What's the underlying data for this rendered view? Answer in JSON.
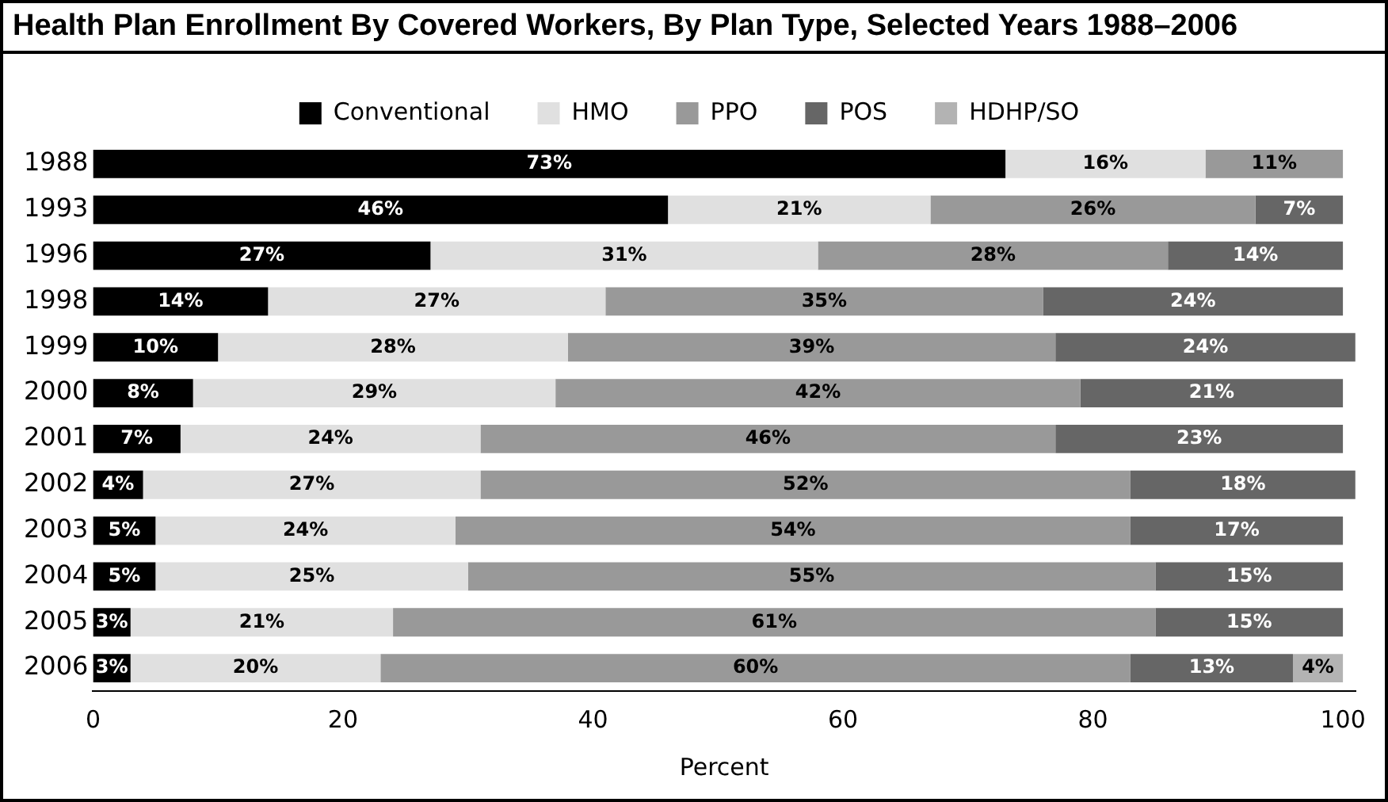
{
  "chart_data": {
    "type": "bar",
    "title": "Health Plan Enrollment By Covered Workers, By Plan Type, Selected Years 1988–2006",
    "xlabel": "Percent",
    "orientation": "horizontal",
    "stacked": true,
    "legend": "top",
    "grid": false,
    "xlim": [
      0,
      101
    ],
    "xticks": [
      0,
      20,
      40,
      60,
      80,
      100
    ],
    "categories": [
      "1988",
      "1993",
      "1996",
      "1998",
      "1999",
      "2000",
      "2001",
      "2002",
      "2003",
      "2004",
      "2005",
      "2006"
    ],
    "series": [
      {
        "name": "Conventional",
        "color": "#000000",
        "values": [
          73,
          46,
          27,
          14,
          10,
          8,
          7,
          4,
          5,
          5,
          3,
          3
        ],
        "value_labels": [
          "73%",
          "46%",
          "27%",
          "14%",
          "10%",
          "8%",
          "7%",
          "4%",
          "5%",
          "5%",
          "3%",
          "3%"
        ]
      },
      {
        "name": "HMO",
        "color": "#e0e0e0",
        "values": [
          16,
          21,
          31,
          27,
          28,
          29,
          24,
          27,
          24,
          25,
          21,
          20
        ],
        "value_labels": [
          "16%",
          "21%",
          "31%",
          "27%",
          "28%",
          "29%",
          "24%",
          "27%",
          "24%",
          "25%",
          "21%",
          "20%"
        ]
      },
      {
        "name": "PPO",
        "color": "#999999",
        "values": [
          11,
          26,
          28,
          35,
          39,
          42,
          46,
          52,
          54,
          55,
          61,
          60
        ],
        "value_labels": [
          "11%",
          "26%",
          "28%",
          "35%",
          "39%",
          "42%",
          "46%",
          "52%",
          "54%",
          "55%",
          "61%",
          "60%"
        ]
      },
      {
        "name": "POS",
        "color": "#666666",
        "values": [
          null,
          7,
          14,
          24,
          24,
          21,
          23,
          18,
          17,
          15,
          15,
          13
        ],
        "value_labels": [
          null,
          "7%",
          "14%",
          "24%",
          "24%",
          "21%",
          "23%",
          "18%",
          "17%",
          "15%",
          "15%",
          "13%"
        ]
      },
      {
        "name": "HDHP/SO",
        "color": "#b3b3b3",
        "values": [
          null,
          null,
          null,
          null,
          null,
          null,
          null,
          null,
          null,
          null,
          null,
          4
        ],
        "value_labels": [
          null,
          null,
          null,
          null,
          null,
          null,
          null,
          null,
          null,
          null,
          null,
          "4%"
        ]
      }
    ]
  }
}
